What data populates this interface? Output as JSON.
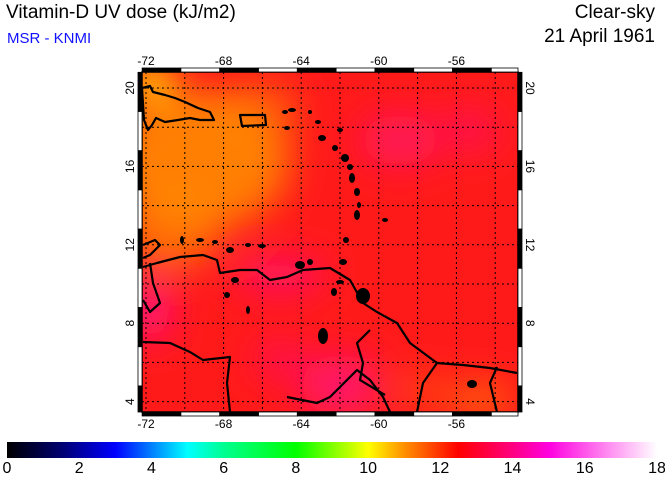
{
  "header": {
    "title": "Vitamin-D UV dose (kJ/m2)",
    "credit": "MSR - KNMI",
    "condition": "Clear-sky",
    "date": "21 April 1961"
  },
  "map": {
    "lon_ticks": [
      -72,
      -68,
      -64,
      -60,
      -56
    ],
    "lat_ticks": [
      20,
      16,
      12,
      8,
      4
    ],
    "lon_range": [
      -72.2,
      -53
    ],
    "lat_range": [
      3.4,
      20.8
    ],
    "field_colors": {
      "base": "#ff1a1a",
      "orange": "#ff8a00",
      "yellow": "#ffd000",
      "magenta": "#ff10a0"
    }
  },
  "colorbar": {
    "labels": [
      "0",
      "2",
      "4",
      "6",
      "8",
      "10",
      "12",
      "14",
      "16",
      "18"
    ],
    "range": [
      0,
      18
    ],
    "stops": [
      [
        0,
        "#000000"
      ],
      [
        1.5,
        "#000070"
      ],
      [
        3,
        "#0000ff"
      ],
      [
        5,
        "#00ffff"
      ],
      [
        6,
        "#00ff90"
      ],
      [
        8,
        "#00ff00"
      ],
      [
        10,
        "#ffff00"
      ],
      [
        11,
        "#ff9000"
      ],
      [
        12.5,
        "#ff0000"
      ],
      [
        14,
        "#ff0080"
      ],
      [
        15,
        "#ff00e0"
      ],
      [
        18,
        "#ffffff"
      ]
    ]
  }
}
